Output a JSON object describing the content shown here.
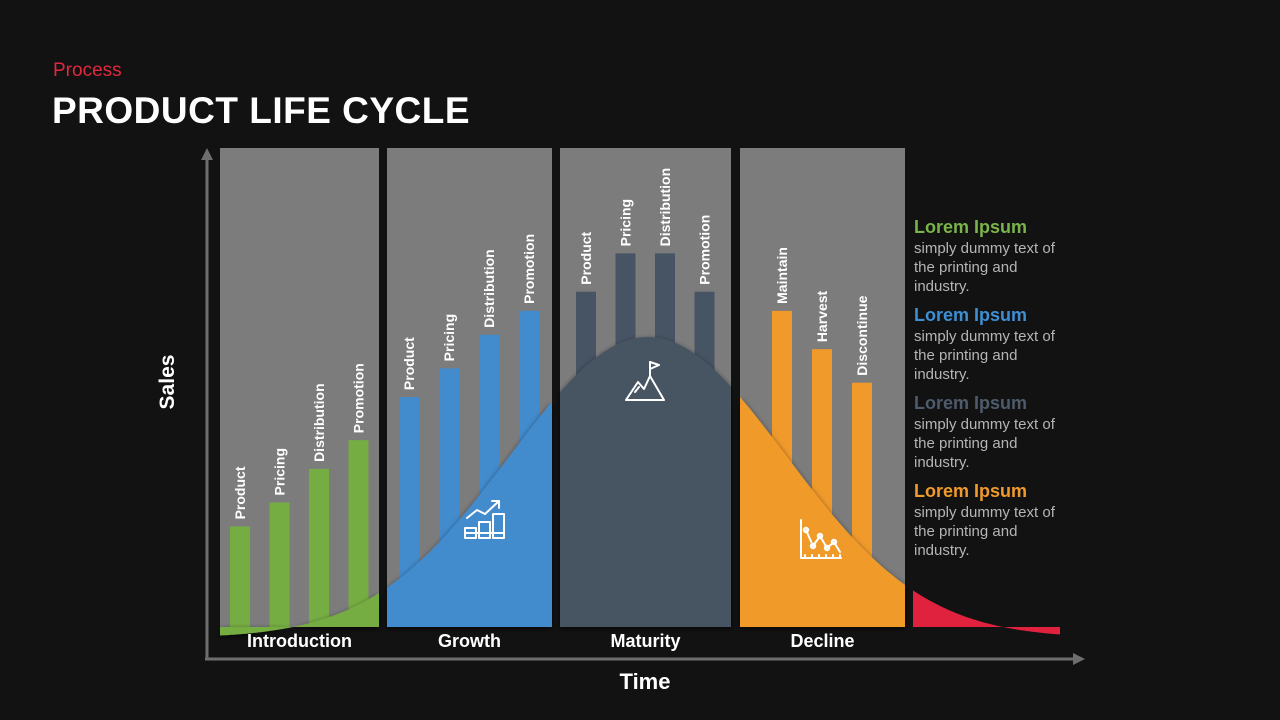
{
  "header": {
    "subtitle": "Process",
    "title": "PRODUCT LIFE CYCLE"
  },
  "axes": {
    "y_label": "Sales",
    "x_label": "Time"
  },
  "stages": [
    {
      "name": "Introduction",
      "color": "#76ad43",
      "icon": "seedling-icon",
      "bars": [
        {
          "label": "Product",
          "level": 0.21
        },
        {
          "label": "Pricing",
          "level": 0.26
        },
        {
          "label": "Distribution",
          "level": 0.33
        },
        {
          "label": "Promotion",
          "level": 0.39
        }
      ]
    },
    {
      "name": "Growth",
      "color": "#428bcd",
      "icon": "growth-chart-icon",
      "bars": [
        {
          "label": "Product",
          "level": 0.48
        },
        {
          "label": "Pricing",
          "level": 0.54
        },
        {
          "label": "Distribution",
          "level": 0.61
        },
        {
          "label": "Promotion",
          "level": 0.66
        }
      ]
    },
    {
      "name": "Maturity",
      "color": "#475464",
      "icon": "mountain-flag-icon",
      "bars": [
        {
          "label": "Product",
          "level": 0.7
        },
        {
          "label": "Pricing",
          "level": 0.78
        },
        {
          "label": "Distribution",
          "level": 0.78
        },
        {
          "label": "Promotion",
          "level": 0.7
        }
      ]
    },
    {
      "name": "Decline",
      "color": "#f09a2c",
      "icon": "decline-chart-icon",
      "bars": [
        {
          "label": "Maintain",
          "level": 0.66
        },
        {
          "label": "Harvest",
          "level": 0.58
        },
        {
          "label": "Discontinue",
          "level": 0.51
        }
      ]
    }
  ],
  "tail_color": "#e0223e",
  "legend": [
    {
      "heading": "Lorem Ipsum",
      "text": "simply dummy text of the printing and industry.",
      "color": "#7ab349"
    },
    {
      "heading": "Lorem Ipsum",
      "text": "simply dummy text of the printing and industry.",
      "color": "#3e8ed4"
    },
    {
      "heading": "Lorem Ipsum",
      "text": "simply dummy text of the printing and industry.",
      "color": "#4e5b6a"
    },
    {
      "heading": "Lorem Ipsum",
      "text": "simply dummy text of the printing and industry.",
      "color": "#f09a2c"
    }
  ]
}
